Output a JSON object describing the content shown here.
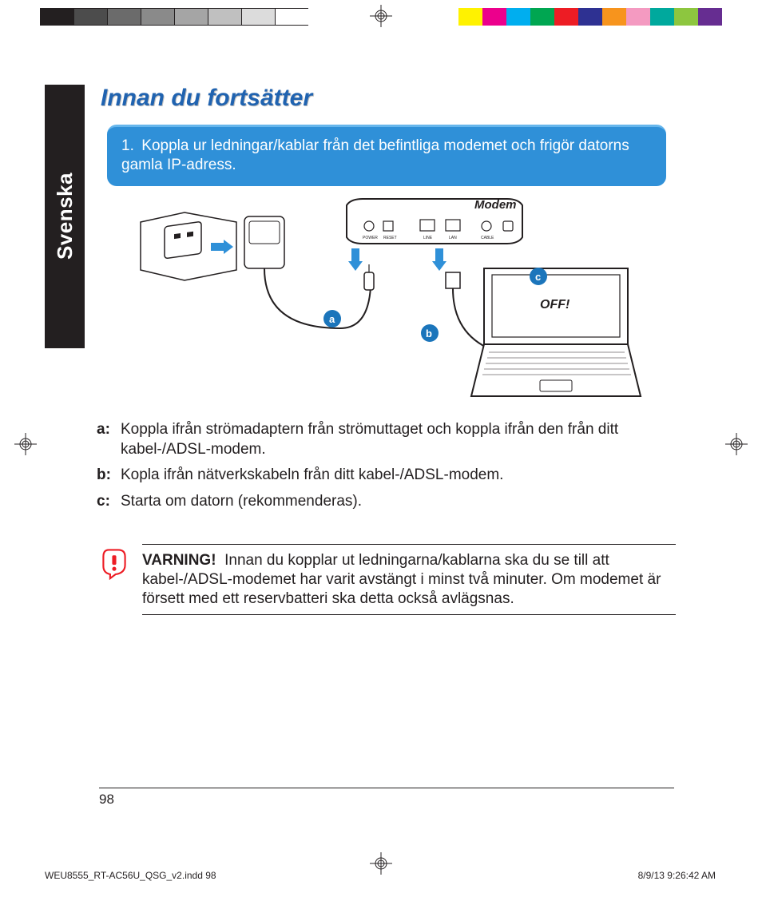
{
  "colorBar": {
    "left": [
      "#231f20",
      "#4c4c4c",
      "#6b6b6b",
      "#8a8a8a",
      "#a5a5a5",
      "#c0c0c0",
      "#dcdcdc",
      "#ffffff"
    ],
    "right": [
      "#fff200",
      "#ec008c",
      "#00aeef",
      "#00a651",
      "#ed1c24",
      "#2e3192",
      "#f7941d",
      "#f49ac1",
      "#00a99d",
      "#8dc63f",
      "#662d91"
    ],
    "borderColor": "#231f20"
  },
  "sideTab": "Svenska",
  "headingText": "Innan du fortsätter",
  "blueBox": {
    "number": "1.",
    "text": "Koppla ur ledningar/kablar från det befintliga modemet och frigör datorns gamla IP-adress.",
    "bg": "#2f90d8",
    "textColor": "#ffffff"
  },
  "diagram": {
    "modemLabel": "Modem",
    "ports": {
      "power": "POWER",
      "reset": "RESET",
      "line": "LINE",
      "lan": "LAN",
      "cable": "CABLE"
    },
    "off": "OFF!",
    "badges": {
      "a": "a",
      "b": "b",
      "c": "c"
    },
    "colors": {
      "arrow": "#2f90d8",
      "badge": "#1b75bb",
      "stroke": "#231f20",
      "fill": "#ffffff"
    }
  },
  "steps": [
    {
      "label": "a:",
      "text": "Koppla ifrån strömadaptern från strömuttaget och koppla ifrån den från ditt kabel-/ADSL-modem."
    },
    {
      "label": "b:",
      "text": "Kopla ifrån nätverkskabeln från ditt kabel-/ADSL-modem."
    },
    {
      "label": "c:",
      "text": "Starta om datorn (rekommenderas)."
    }
  ],
  "warning": {
    "label": "VARNING!",
    "text": "Innan du kopplar ut ledningarna/kablarna ska du se till att kabel-/ADSL-modemet har varit avstängt i minst två minuter. Om modemet är försett med ett reservbatteri ska detta också avlägsnas.",
    "iconColor": "#ed1c24"
  },
  "pageNumber": "98",
  "footer": {
    "file": "WEU8555_RT-AC56U_QSG_v2.indd   98",
    "timestamp": "8/9/13   9:26:42 AM"
  }
}
